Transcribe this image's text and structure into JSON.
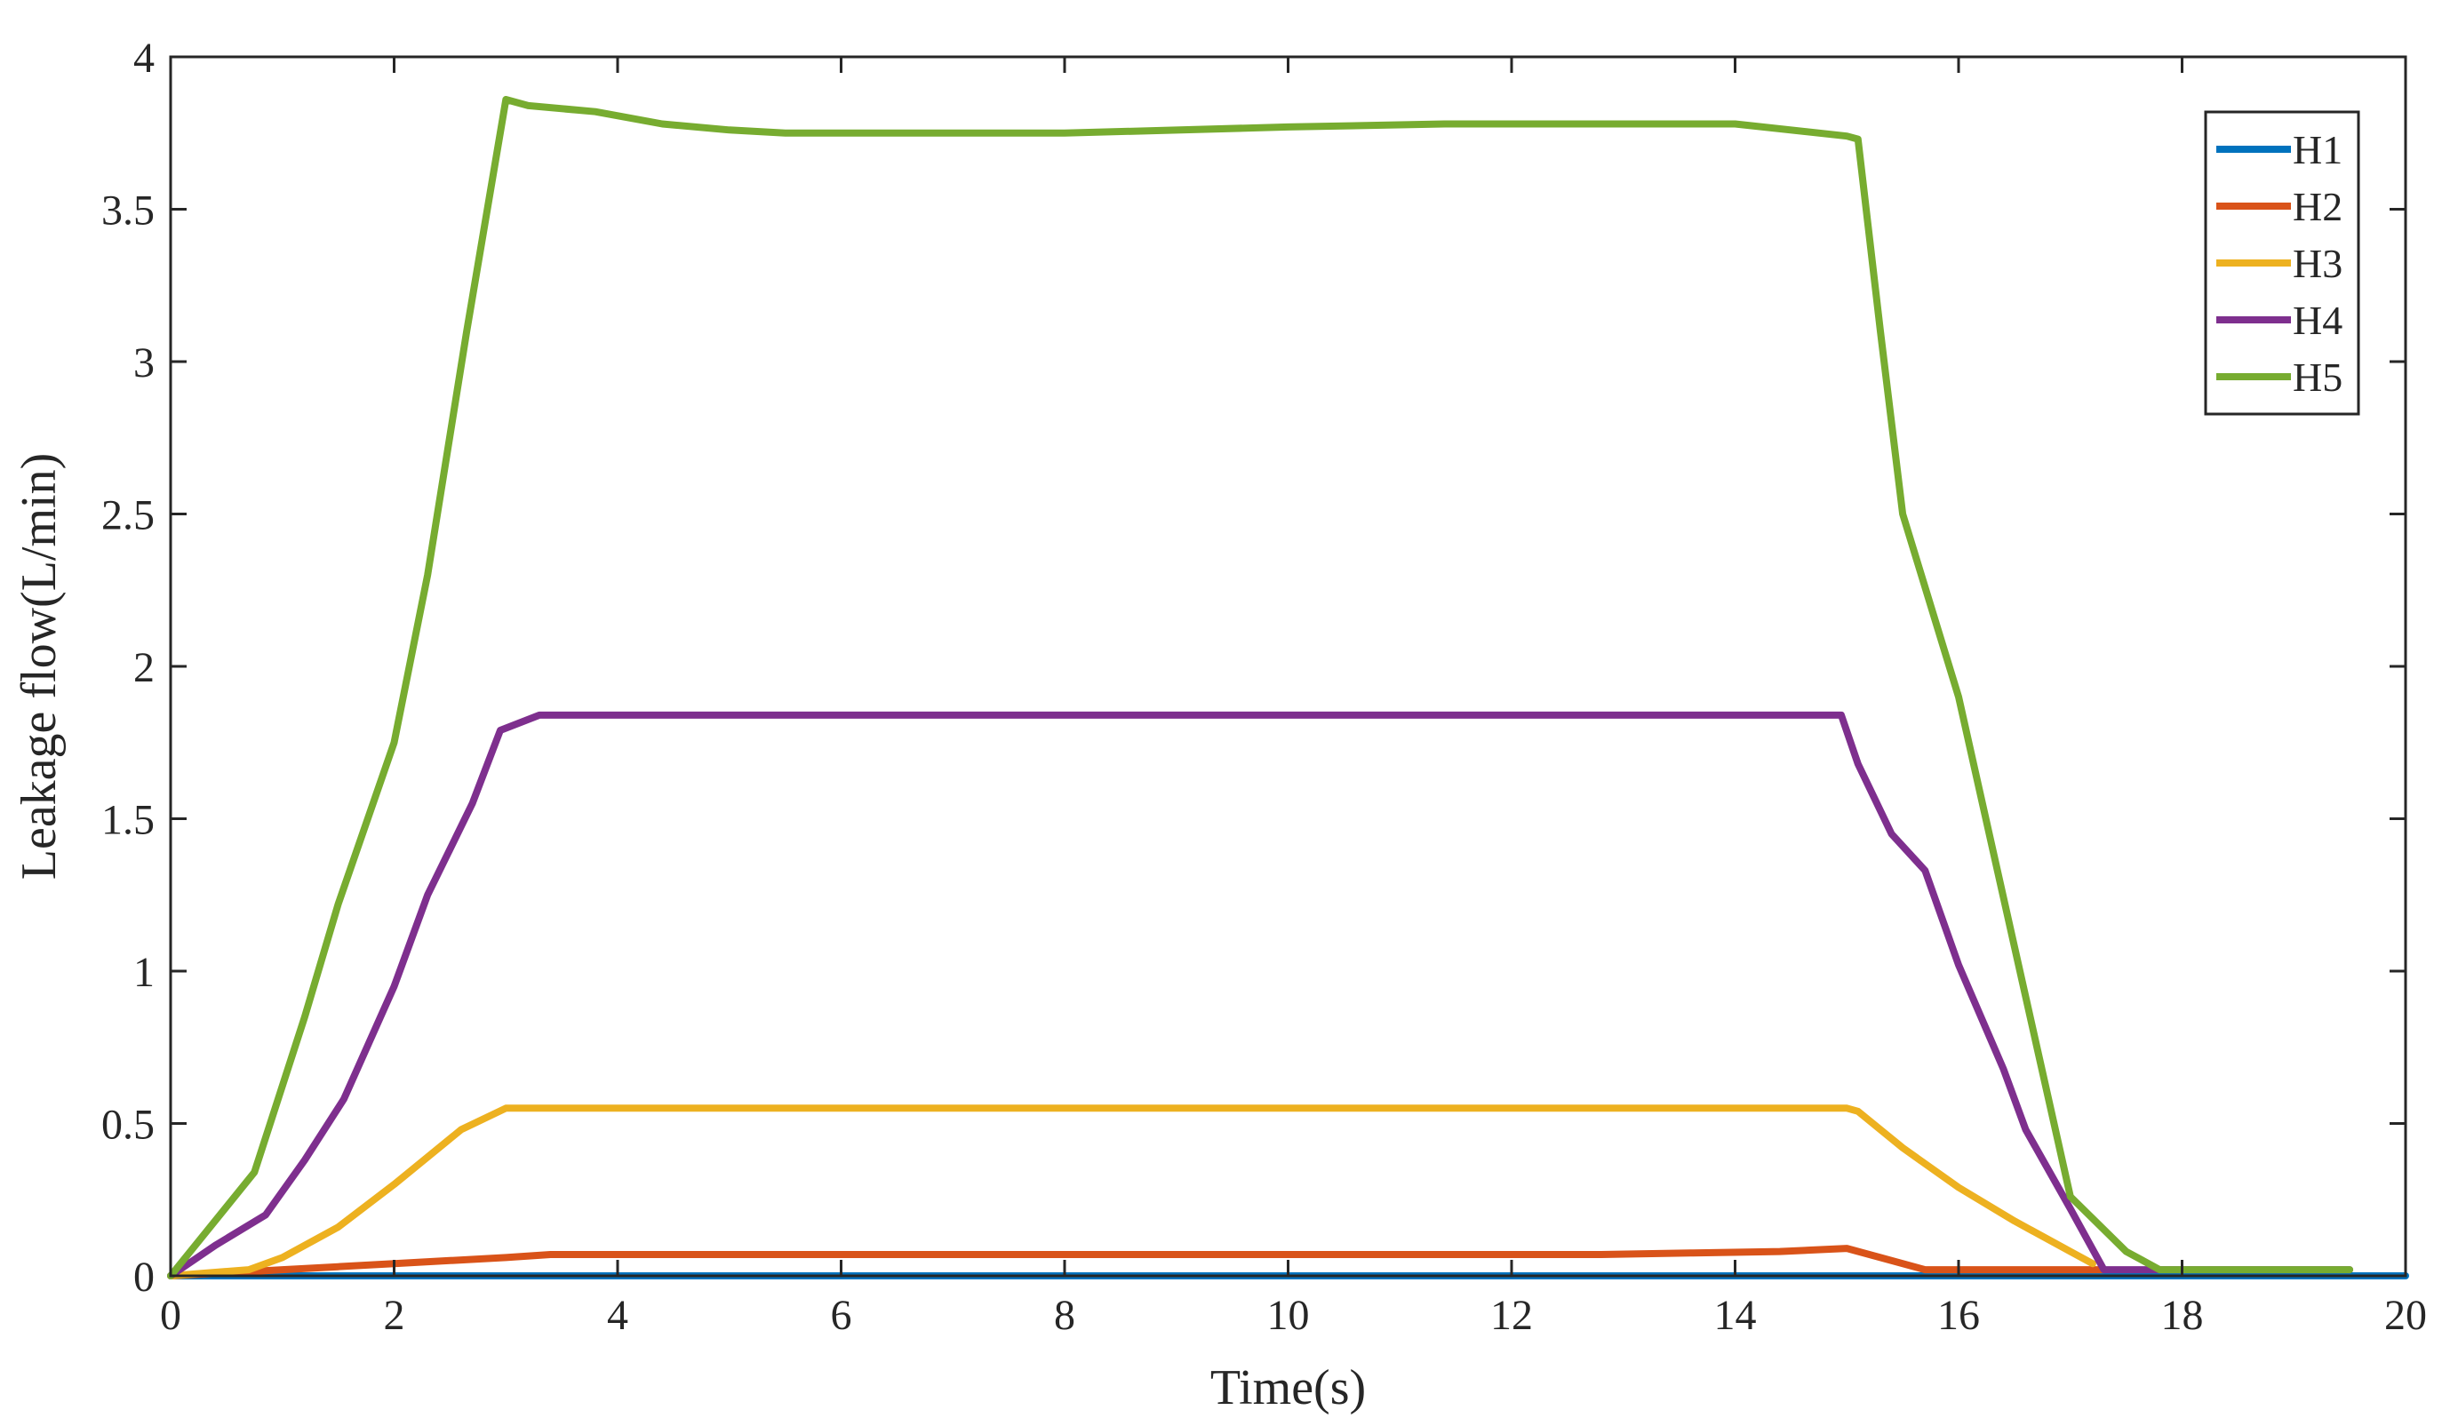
{
  "chart_data": {
    "type": "line",
    "title": "",
    "xlabel": "Time(s)",
    "ylabel": "Leakage flow(L/min)",
    "xlim": [
      0,
      20
    ],
    "ylim": [
      0,
      4
    ],
    "xticks": [
      0,
      2,
      4,
      6,
      8,
      10,
      12,
      14,
      16,
      18,
      20
    ],
    "yticks": [
      0,
      0.5,
      1,
      1.5,
      2,
      2.5,
      3,
      3.5,
      4
    ],
    "xtick_labels": [
      "0",
      "2",
      "4",
      "6",
      "8",
      "10",
      "12",
      "14",
      "16",
      "18",
      "20"
    ],
    "ytick_labels": [
      "0",
      "0.5",
      "1",
      "1.5",
      "2",
      "2.5",
      "3",
      "3.5",
      "4"
    ],
    "grid": false,
    "legend": "top-right",
    "series": [
      {
        "name": "H1",
        "color": "#0072BD",
        "x": [
          0,
          2,
          4,
          6,
          8,
          10,
          12,
          14,
          16,
          18,
          20
        ],
        "y": [
          0,
          0,
          0,
          0,
          0,
          0,
          0,
          0,
          0,
          0,
          0
        ]
      },
      {
        "name": "H2",
        "color": "#D95319",
        "x": [
          0,
          0.5,
          1.0,
          1.5,
          2.0,
          2.5,
          3.0,
          3.4,
          4.0,
          6.0,
          8.0,
          10.0,
          12.0,
          12.8,
          13.6,
          14.4,
          15.0,
          15.3,
          15.7,
          16.5,
          17.3
        ],
        "y": [
          0,
          0.01,
          0.02,
          0.03,
          0.04,
          0.05,
          0.06,
          0.07,
          0.07,
          0.07,
          0.07,
          0.07,
          0.07,
          0.07,
          0.075,
          0.08,
          0.09,
          0.06,
          0.02,
          0.02,
          0.02
        ]
      },
      {
        "name": "H3",
        "color": "#EDB120",
        "x": [
          0,
          0.7,
          1.0,
          1.5,
          2.0,
          2.6,
          3.0,
          6.0,
          10.0,
          14.0,
          15.0,
          15.1,
          15.5,
          16.0,
          16.5,
          17.0,
          17.2
        ],
        "y": [
          0,
          0.02,
          0.06,
          0.16,
          0.3,
          0.48,
          0.55,
          0.55,
          0.55,
          0.55,
          0.55,
          0.54,
          0.42,
          0.29,
          0.18,
          0.08,
          0.04
        ]
      },
      {
        "name": "H4",
        "color": "#7E2F8E",
        "x": [
          0,
          0.4,
          0.85,
          1.2,
          1.55,
          2.0,
          2.3,
          2.7,
          2.95,
          3.3,
          6.0,
          10.0,
          14.0,
          14.95,
          15.1,
          15.4,
          15.7,
          16.0,
          16.4,
          16.6,
          17.0,
          17.3,
          18.0,
          19.5
        ],
        "y": [
          0,
          0.1,
          0.2,
          0.38,
          0.58,
          0.95,
          1.25,
          1.55,
          1.79,
          1.84,
          1.84,
          1.84,
          1.84,
          1.84,
          1.68,
          1.45,
          1.33,
          1.02,
          0.68,
          0.48,
          0.22,
          0.02,
          0.02,
          0.02
        ]
      },
      {
        "name": "H5",
        "color": "#77AC30",
        "x": [
          0,
          0.75,
          1.2,
          1.5,
          2.0,
          2.3,
          2.65,
          3.0,
          3.2,
          3.8,
          4.4,
          5.0,
          5.5,
          6.5,
          8.0,
          10.0,
          11.4,
          12.0,
          13.0,
          13.5,
          14.0,
          15.0,
          15.1,
          15.3,
          15.5,
          16.0,
          16.5,
          17.0,
          17.5,
          17.8,
          18.0,
          19.5
        ],
        "y": [
          0,
          0.34,
          0.85,
          1.22,
          1.75,
          2.3,
          3.1,
          3.86,
          3.84,
          3.82,
          3.78,
          3.76,
          3.75,
          3.75,
          3.75,
          3.77,
          3.78,
          3.78,
          3.78,
          3.78,
          3.78,
          3.74,
          3.73,
          3.1,
          2.5,
          1.9,
          1.08,
          0.26,
          0.08,
          0.02,
          0.02,
          0.02
        ]
      }
    ]
  }
}
